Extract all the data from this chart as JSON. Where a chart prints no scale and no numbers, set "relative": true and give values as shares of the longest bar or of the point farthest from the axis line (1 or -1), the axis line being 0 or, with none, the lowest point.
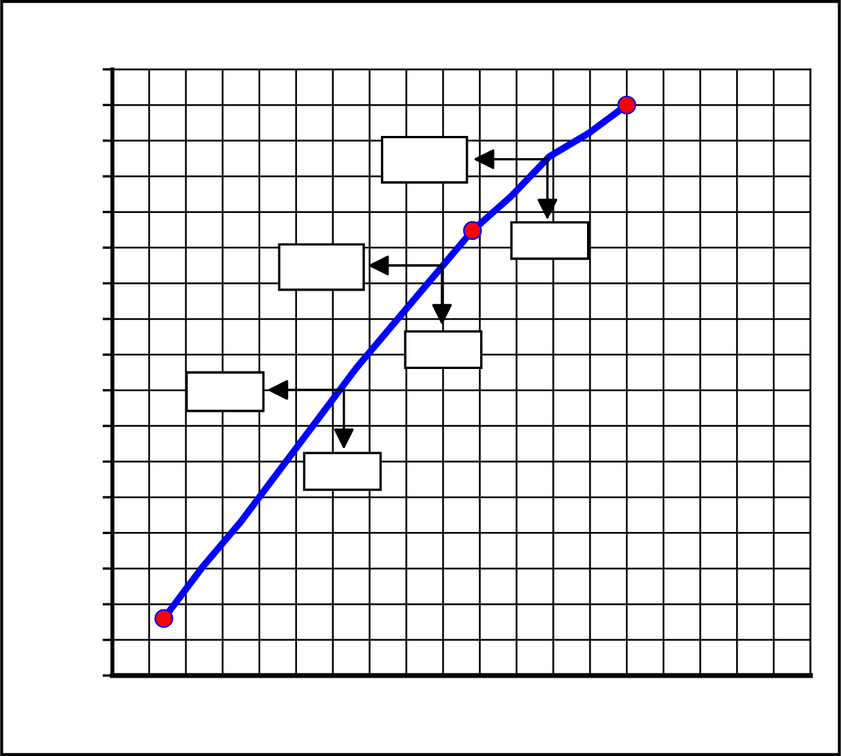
{
  "chart_data": {
    "type": "line",
    "relative": true,
    "grid": true,
    "legend": false,
    "line_style": "solid",
    "categories": [
      null,
      null,
      null,
      null,
      null,
      null,
      null,
      null,
      null,
      null,
      null,
      null,
      null
    ],
    "series": [
      {
        "color": "#0000ff",
        "values": [
          0.1,
          0.19,
          0.27,
          0.36,
          0.45,
          0.54,
          0.62,
          0.7,
          0.78,
          0.84,
          0.91,
          0.95,
          1
        ]
      }
    ]
  }
}
